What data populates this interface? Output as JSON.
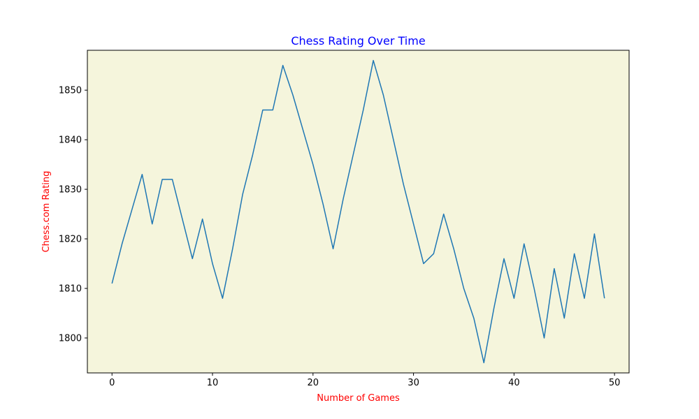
{
  "chart_data": {
    "type": "line",
    "title": "Chess Rating Over Time",
    "xlabel": "Number of Games",
    "ylabel": "Chess.com Rating",
    "xlim": [
      -2.45,
      51.45
    ],
    "ylim": [
      1792.95,
      1858.05
    ],
    "xticks": [
      0,
      10,
      20,
      30,
      40,
      50
    ],
    "yticks": [
      1800,
      1810,
      1820,
      1830,
      1840,
      1850
    ],
    "grid": false,
    "legend": "none",
    "x": [
      0,
      1,
      2,
      3,
      4,
      5,
      6,
      7,
      8,
      9,
      10,
      11,
      12,
      13,
      14,
      15,
      16,
      17,
      18,
      19,
      20,
      21,
      22,
      23,
      24,
      25,
      26,
      27,
      28,
      29,
      30,
      31,
      32,
      33,
      34,
      35,
      36,
      37,
      38,
      39,
      40,
      41,
      42,
      43,
      44,
      45,
      46,
      47,
      48,
      49
    ],
    "series": [
      {
        "values": [
          1811,
          1819,
          1826,
          1833,
          1823,
          1832,
          1832,
          1824,
          1816,
          1824,
          1815,
          1808,
          1818,
          1829,
          1837,
          1846,
          1846,
          1855,
          1849,
          1842,
          1835,
          1827,
          1818,
          1828,
          1837,
          1846,
          1856,
          1849,
          1840,
          1831,
          1823,
          1815,
          1817,
          1825,
          1818,
          1810,
          1804,
          1795,
          1806,
          1816,
          1808,
          1819,
          1810,
          1800,
          1814,
          1804,
          1817,
          1808,
          1821,
          1808
        ]
      }
    ]
  },
  "colors": {
    "line": "#1f77b4",
    "plot_background": "#f5f5dc",
    "title": "#0000ff",
    "axis_labels": "#ff0000"
  }
}
